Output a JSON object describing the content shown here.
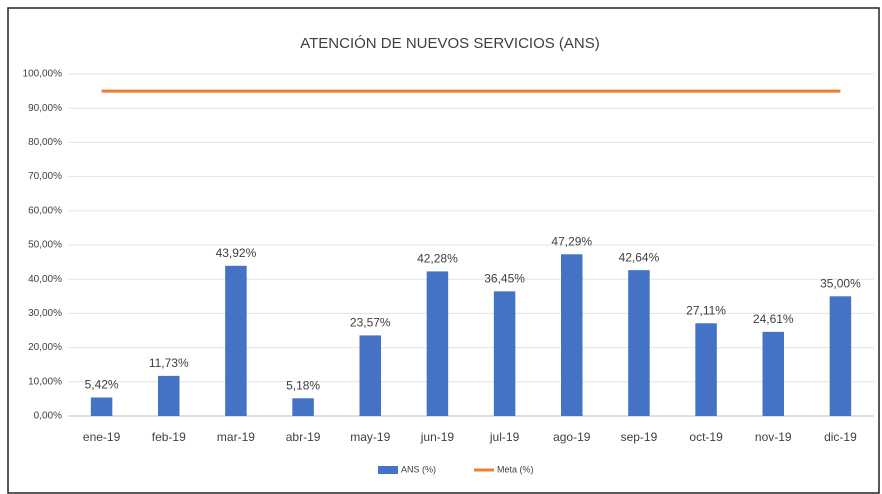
{
  "chart_data": {
    "type": "bar",
    "title": "ATENCIÓN DE NUEVOS SERVICIOS (ANS)",
    "categories": [
      "ene-19",
      "feb-19",
      "mar-19",
      "abr-19",
      "may-19",
      "jun-19",
      "jul-19",
      "ago-19",
      "sep-19",
      "oct-19",
      "nov-19",
      "dic-19"
    ],
    "series": [
      {
        "name": "ANS (%)",
        "type": "bar",
        "color": "#4472c4",
        "values": [
          5.42,
          11.73,
          43.92,
          5.18,
          23.57,
          42.28,
          36.45,
          47.29,
          42.64,
          27.11,
          24.61,
          35.0
        ],
        "value_labels": [
          "5,42%",
          "11,73%",
          "43,92%",
          "5,18%",
          "23,57%",
          "42,28%",
          "36,45%",
          "47,29%",
          "42,64%",
          "27,11%",
          "24,61%",
          "35,00%"
        ]
      },
      {
        "name": "Meta (%)",
        "type": "line",
        "color": "#ed7d31",
        "values": [
          95,
          95,
          95,
          95,
          95,
          95,
          95,
          95,
          95,
          95,
          95,
          95
        ]
      }
    ],
    "ylim": [
      0,
      100
    ],
    "yticks": [
      {
        "value": 0,
        "label": "0,00%"
      },
      {
        "value": 10,
        "label": "10,00%"
      },
      {
        "value": 20,
        "label": "20,00%"
      },
      {
        "value": 30,
        "label": "30,00%"
      },
      {
        "value": 40,
        "label": "40,00%"
      },
      {
        "value": 50,
        "label": "50,00%"
      },
      {
        "value": 60,
        "label": "60,00%"
      },
      {
        "value": 70,
        "label": "70,00%"
      },
      {
        "value": 80,
        "label": "80,00%"
      },
      {
        "value": 90,
        "label": "90,00%"
      },
      {
        "value": 100,
        "label": "100,00%"
      }
    ],
    "legend": "bottom"
  }
}
